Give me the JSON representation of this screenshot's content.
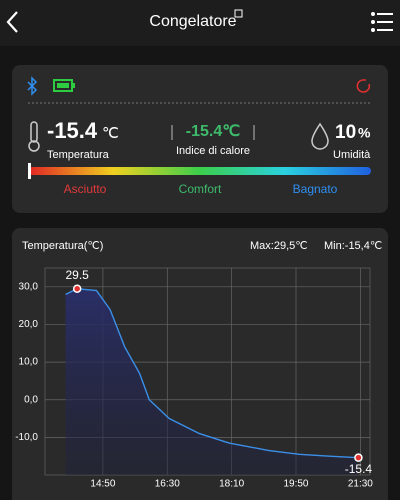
{
  "header": {
    "title": "Congelatore"
  },
  "status": {
    "temperature": {
      "value": "-15.4",
      "unit": "℃",
      "label": "Temperatura"
    },
    "heat_index": {
      "value": "-15.4℃",
      "label": "Indice di calore"
    },
    "humidity": {
      "value": "10",
      "unit": "%",
      "label": "Umidità"
    },
    "scale_labels": [
      "Asciutto",
      "Comfort",
      "Bagnato"
    ]
  },
  "chart_card": {
    "title": "Temperatura(℃)",
    "max": "Max:29,5℃",
    "min": "Min:-15,4℃"
  },
  "chart_data": {
    "type": "line",
    "x": [
      "13:52",
      "14:10",
      "14:40",
      "15:01",
      "15:24",
      "15:47",
      "16:02",
      "16:33",
      "17:20",
      "18:06",
      "19:08",
      "19:55",
      "20:42",
      "21:27"
    ],
    "series": [
      {
        "name": "Temperatura",
        "color": "#3b8fe8",
        "values": [
          28,
          29.5,
          29,
          24,
          14,
          7,
          0,
          -5,
          -9,
          -11.5,
          -13.5,
          -14.5,
          -15,
          -15.4
        ]
      }
    ],
    "markers": [
      {
        "x": "14:10",
        "y": 29.5
      },
      {
        "x": "21:27",
        "y": -15.4
      }
    ],
    "xlim": [
      "13:20",
      "21:45"
    ],
    "xticks": [
      "14:50",
      "16:30",
      "18:10",
      "19:50",
      "21:30"
    ],
    "ylim": [
      -20,
      35
    ],
    "yticks": [
      {
        "value": 30,
        "label": "30,0"
      },
      {
        "value": 20,
        "label": "20,0"
      },
      {
        "value": 10,
        "label": "10,0"
      },
      {
        "value": 0,
        "label": "0,0"
      },
      {
        "value": -10,
        "label": "-10,0"
      }
    ],
    "grid": true
  }
}
